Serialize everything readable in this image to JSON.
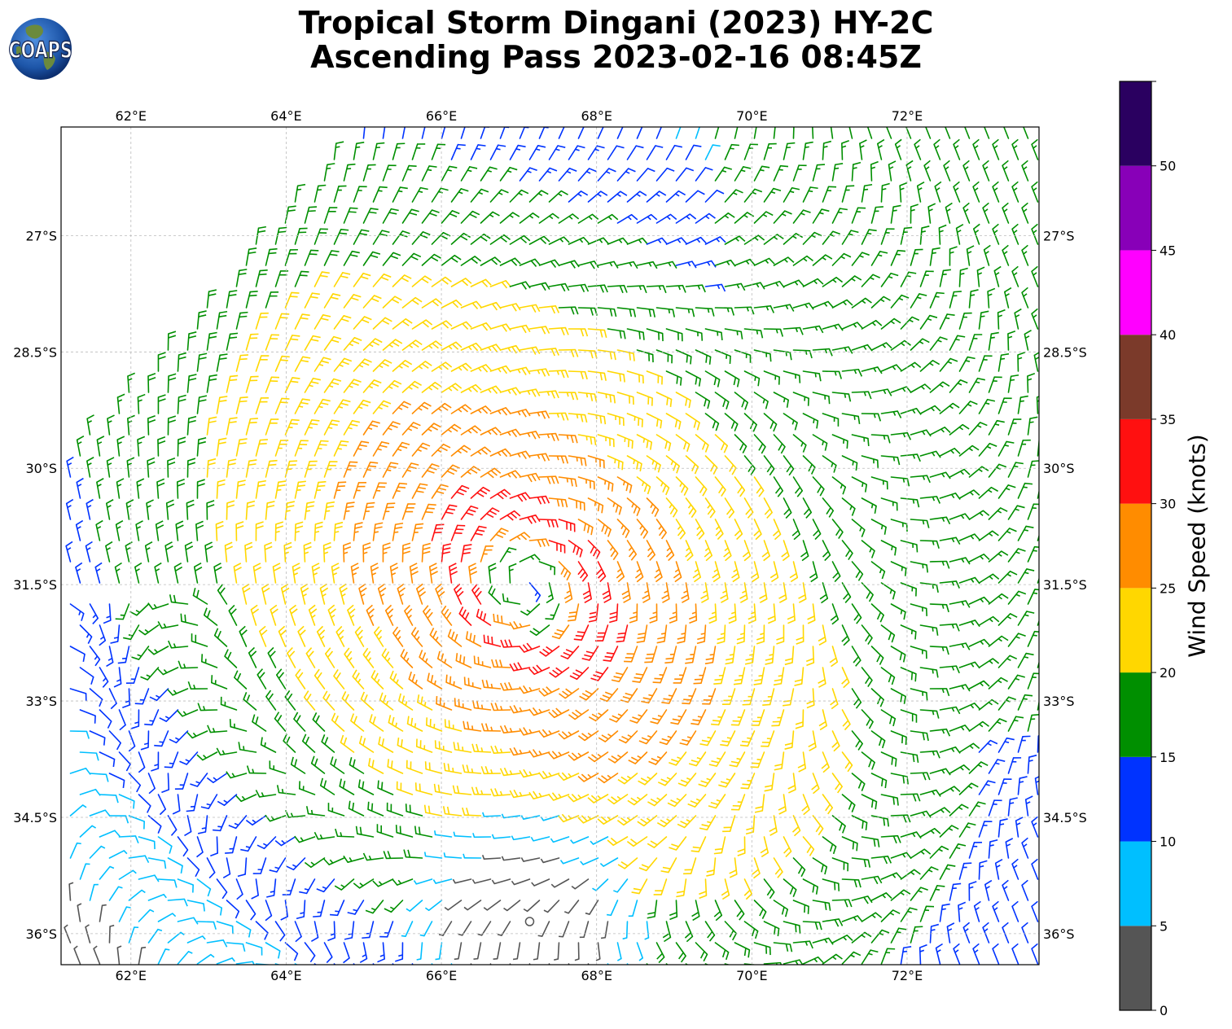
{
  "title": {
    "line1": "Tropical Storm Dingani (2023) HY-2C",
    "line2": "Ascending Pass 2023-02-16 08:45Z"
  },
  "logo": {
    "text": "COAPS"
  },
  "map": {
    "lon_range": [
      61.1,
      73.7
    ],
    "lat_range": [
      -36.4,
      -25.6
    ],
    "lon_ticks": [
      "62°E",
      "64°E",
      "66°E",
      "68°E",
      "70°E",
      "72°E"
    ],
    "lon_tick_values": [
      62,
      64,
      66,
      68,
      70,
      72
    ],
    "lat_ticks": [
      "27°S",
      "28.5°S",
      "30°S",
      "31.5°S",
      "33°S",
      "34.5°S",
      "36°S"
    ],
    "lat_tick_values": [
      -27,
      -28.5,
      -30,
      -31.5,
      -33,
      -34.5,
      -36
    ],
    "grid": true,
    "storm_center": {
      "lon": 67.1,
      "lat": -31.5
    }
  },
  "colorbar": {
    "label": "Wind Speed (knots)",
    "bins": [
      {
        "min": 0,
        "max": 5,
        "color": "#555555"
      },
      {
        "min": 5,
        "max": 10,
        "color": "#00bfff"
      },
      {
        "min": 10,
        "max": 15,
        "color": "#0033ff"
      },
      {
        "min": 15,
        "max": 20,
        "color": "#008f00"
      },
      {
        "min": 20,
        "max": 25,
        "color": "#ffd700"
      },
      {
        "min": 25,
        "max": 30,
        "color": "#ff8c00"
      },
      {
        "min": 30,
        "max": 35,
        "color": "#ff1010"
      },
      {
        "min": 35,
        "max": 40,
        "color": "#7b3a2a"
      },
      {
        "min": 40,
        "max": 45,
        "color": "#ff00ff"
      },
      {
        "min": 45,
        "max": 50,
        "color": "#8800b8"
      },
      {
        "min": 50,
        "max": 55,
        "color": "#2a0060"
      }
    ],
    "tick_labels": [
      "0",
      "5",
      "10",
      "15",
      "20",
      "25",
      "30",
      "35",
      "40",
      "45",
      "50"
    ],
    "tick_values": [
      0,
      5,
      10,
      15,
      20,
      25,
      30,
      35,
      40,
      45,
      50
    ]
  }
}
